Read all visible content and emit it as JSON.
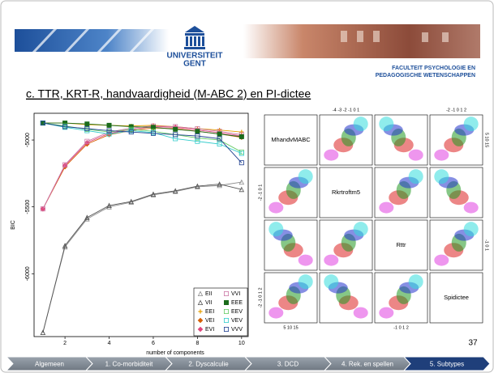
{
  "header": {
    "logo": [
      "UNIVERSITEIT",
      "GENT"
    ],
    "faculty": [
      "FACULTEIT PSYCHOLOGIE EN",
      "PEDAGOGISCHE WETENSCHAPPEN"
    ]
  },
  "slide": {
    "title": "c. TTR, KRT-R, handvaardigheid (M-ABC 2) en PI-dictee",
    "number": "37"
  },
  "chart_data": {
    "type": "line",
    "xlabel": "number of components",
    "ylabel": "BIC",
    "x": [
      1,
      2,
      3,
      4,
      5,
      6,
      7,
      8,
      9,
      10
    ],
    "xlim": [
      0.6,
      10.3
    ],
    "xticks": [
      2,
      4,
      6,
      8,
      10
    ],
    "ylim": [
      -6470,
      -4800
    ],
    "yticks": [
      -6000,
      -5500,
      -5000
    ],
    "legend": "bottom-right",
    "series": [
      {
        "name": "EII",
        "color": "#8c8c8c",
        "marker": "triangle",
        "values": [
          -6440,
          -5800,
          -5590,
          -5500,
          -5465,
          -5410,
          -5385,
          -5350,
          -5340,
          -5315
        ]
      },
      {
        "name": "VII",
        "color": "#555555",
        "marker": "triangle",
        "values": [
          -6440,
          -5790,
          -5580,
          -5490,
          -5460,
          -5405,
          -5380,
          -5345,
          -5330,
          -5370
        ]
      },
      {
        "name": "EEI",
        "color": "#e69f00",
        "marker": "plus",
        "values": [
          -4873,
          -4873,
          -4885,
          -4890,
          -4895,
          -4890,
          -4900,
          -4915,
          -4925,
          -4940
        ]
      },
      {
        "name": "VEI",
        "color": "#d55e00",
        "marker": "diamond",
        "values": [
          -5515,
          -5200,
          -5030,
          -4960,
          -4930,
          -4910,
          -4915,
          -4935,
          -4955,
          -4980
        ]
      },
      {
        "name": "EVI",
        "color": "#e0457b",
        "marker": "diamond",
        "values": [
          -5515,
          -5190,
          -5020,
          -4950,
          -4920,
          -4900,
          -4905,
          -4925,
          -4945,
          -4970
        ]
      },
      {
        "name": "VVI",
        "color": "#cc79a7",
        "marker": "square",
        "values": [
          -5515,
          -5185,
          -5010,
          -4940,
          -4910,
          -4895,
          -4900,
          -4915,
          -4935,
          -4960
        ]
      },
      {
        "name": "EEE",
        "color": "#1b6b1b",
        "marker": "square-filled",
        "values": [
          -4873,
          -4873,
          -4880,
          -4890,
          -4900,
          -4905,
          -4920,
          -4935,
          -4955,
          -4975
        ]
      },
      {
        "name": "EEV",
        "color": "#66cc66",
        "marker": "square",
        "values": [
          -4873,
          -4895,
          -4920,
          -4940,
          -4920,
          -4935,
          -4960,
          -4985,
          -5000,
          -5090
        ]
      },
      {
        "name": "VEV",
        "color": "#33cccc",
        "marker": "square",
        "values": [
          -4873,
          -4905,
          -4930,
          -4955,
          -4930,
          -4945,
          -4990,
          -5010,
          -5030,
          -5100
        ]
      },
      {
        "name": "VVV",
        "color": "#1f3f8f",
        "marker": "square",
        "values": [
          -4873,
          -4900,
          -4915,
          -4930,
          -4940,
          -4950,
          -4960,
          -4970,
          -4990,
          -5170
        ]
      }
    ]
  },
  "matrix": {
    "variables": [
      "MhandvMABC",
      "Rkrtroftm5",
      "Rttr",
      "Spidictee"
    ],
    "top_ticks": {
      "1": "-4  -3  -2  -1  0  1",
      "3": "-2  -1  0  1  2"
    },
    "bottom_ticks": {
      "0": "5   10   15",
      "2": "-1   0   1   2"
    },
    "left_ticks": {
      "1": "-2  -1  0  1",
      "3": "-2  -1  0  1  2"
    },
    "right_ticks": {
      "0": "5  10  15",
      "2": "-1  0  1"
    }
  },
  "nav": {
    "items": [
      "Algemeen",
      "1. Co-morbiditeit",
      "2. Dyscalculie",
      "3. DCD",
      "4. Rek. en spellen",
      "5. Subtypes"
    ],
    "active": 5
  }
}
